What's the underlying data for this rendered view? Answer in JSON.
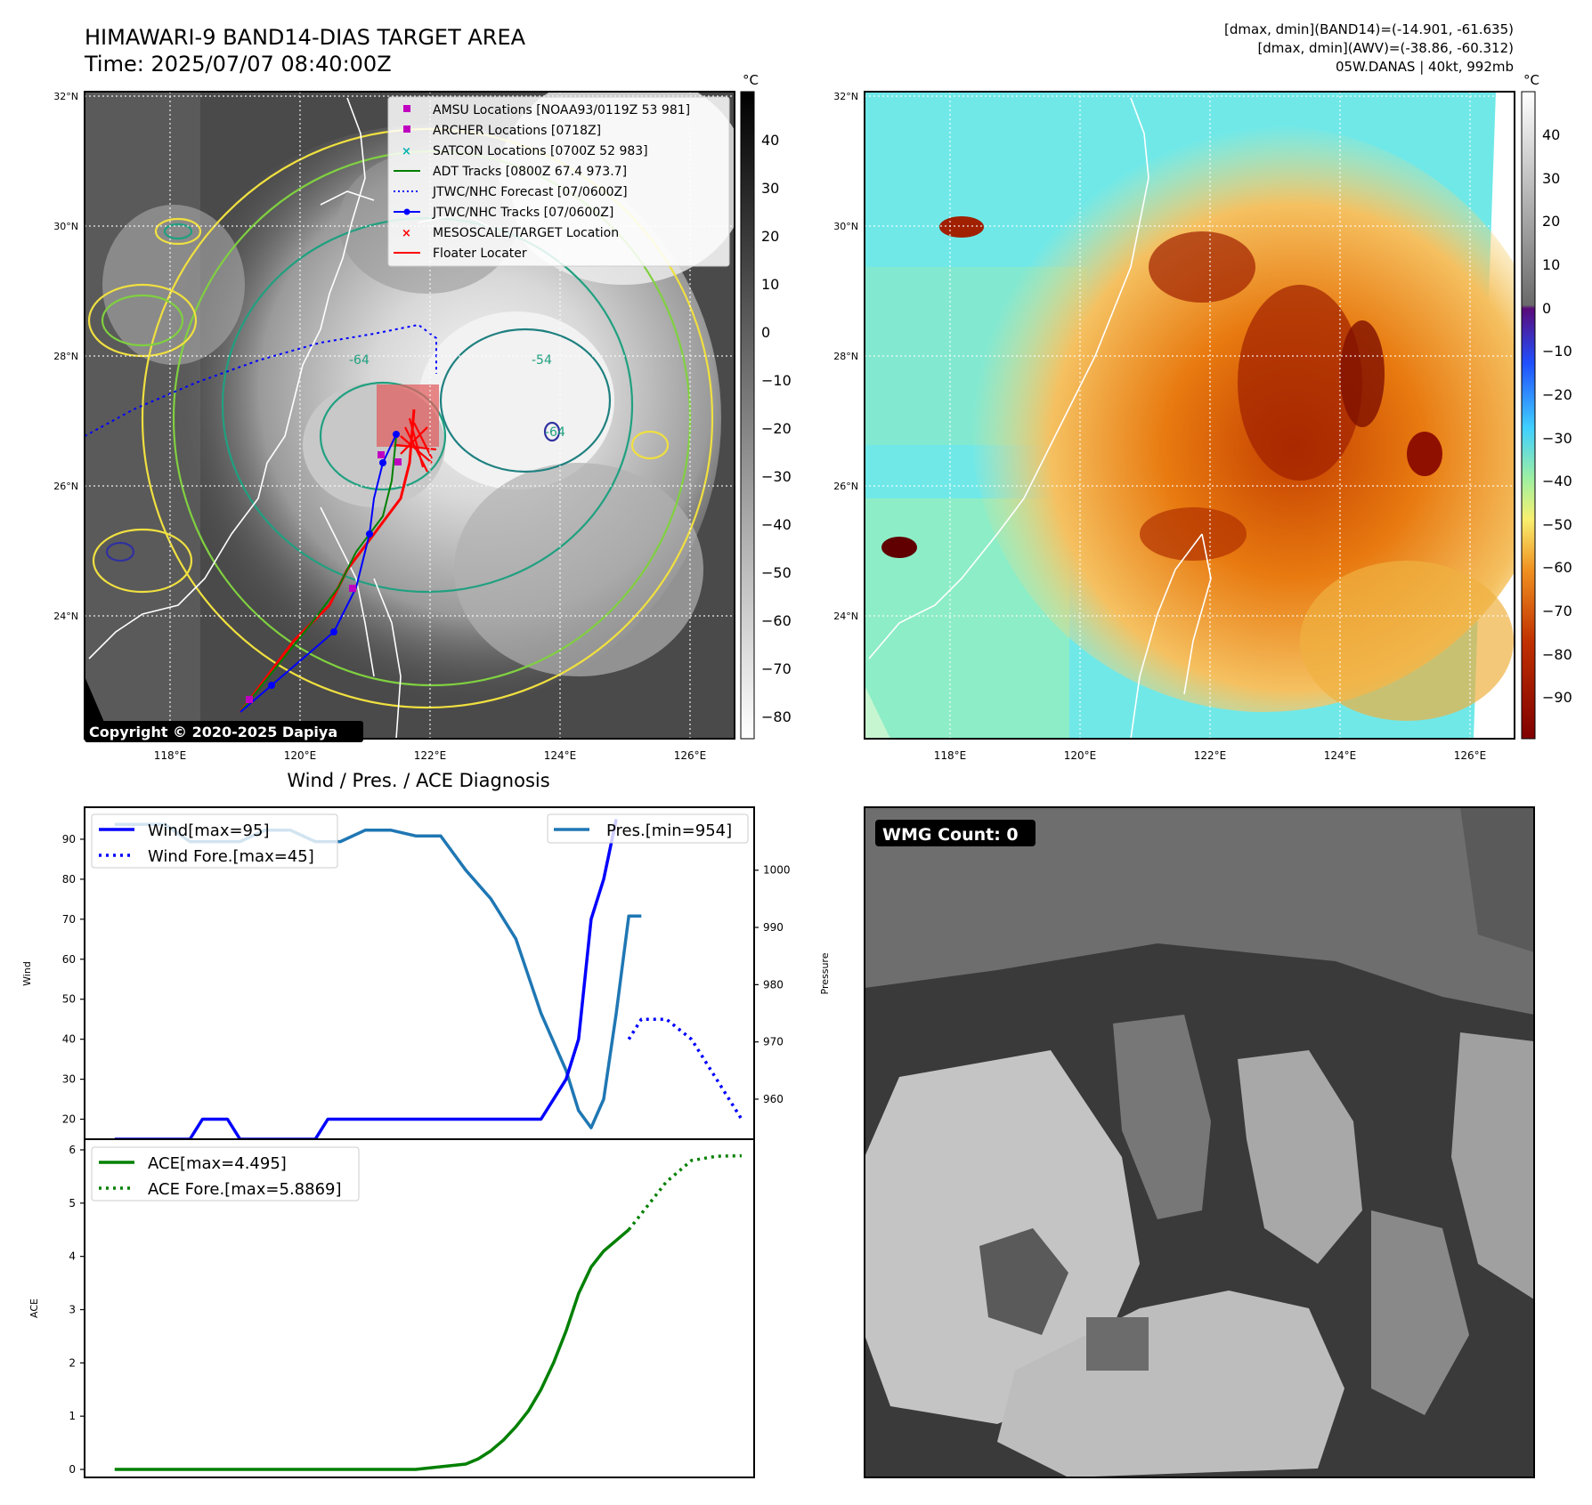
{
  "header": {
    "title": "HIMAWARI-9 BAND14-DIAS TARGET AREA",
    "time": "Time: 2025/07/07 08:40:00Z",
    "info": [
      "[dmax, dmin](BAND14)=(-14.901, -61.635)",
      "[dmax, dmin](AWV)=(-38.86, -60.312)",
      "05W.DANAS | 40kt, 992mb"
    ]
  },
  "map": {
    "lon_ticks": [
      "118°E",
      "120°E",
      "122°E",
      "124°E",
      "126°E"
    ],
    "lat_ticks": [
      "32°N",
      "30°N",
      "28°N",
      "26°N",
      "24°N"
    ],
    "copyright": "Copyright © 2020-2025 Dapiya",
    "contour_labels": [
      "-64",
      "-54",
      "-64"
    ],
    "colorbar_gray": {
      "unit": "°C",
      "ticks": [
        "40",
        "30",
        "20",
        "10",
        "0",
        "−10",
        "−20",
        "−30",
        "−40",
        "−50",
        "−60",
        "−70",
        "−80"
      ]
    },
    "colorbar_color": {
      "unit": "°C",
      "ticks": [
        "40",
        "30",
        "20",
        "10",
        "0",
        "−10",
        "−20",
        "−30",
        "−40",
        "−50",
        "−60",
        "−70",
        "−80",
        "−90"
      ]
    },
    "legend": [
      {
        "label": "AMSU Locations [NOAA93/0119Z 53 981]",
        "color": "#c000c0",
        "marker": "square"
      },
      {
        "label": "ARCHER Locations [0718Z]",
        "color": "#c000c0",
        "marker": "square"
      },
      {
        "label": "SATCON Locations [0700Z 52 983]",
        "color": "#00b0b0",
        "marker": "x"
      },
      {
        "label": "ADT Tracks [0800Z 67.4 973.7]",
        "color": "#008000",
        "marker": "line"
      },
      {
        "label": "JTWC/NHC Forecast [07/0600Z]",
        "color": "#0000ff",
        "marker": "dotted"
      },
      {
        "label": "JTWC/NHC Tracks [07/0600Z]",
        "color": "#0000ff",
        "marker": "line-dot"
      },
      {
        "label": "MESOSCALE/TARGET Location",
        "color": "#ff0000",
        "marker": "x"
      },
      {
        "label": "Floater Locater",
        "color": "#ff0000",
        "marker": "line"
      }
    ]
  },
  "wmg": {
    "label": "WMG Count: 0"
  },
  "chart_data": [
    {
      "type": "line",
      "title": "Wind / Pres. / ACE Diagnosis",
      "ylabel": "Wind",
      "y2label": "Pressure",
      "ylim": [
        15,
        98
      ],
      "y2lim": [
        953,
        1011
      ],
      "yticks": [
        20,
        30,
        40,
        50,
        60,
        70,
        80,
        90
      ],
      "y2ticks": [
        960,
        970,
        980,
        990,
        1000
      ],
      "xlim": [
        -1.2,
        25.5
      ],
      "series": [
        {
          "name": "Wind[max=95]",
          "color": "#0000ff",
          "style": "solid",
          "x": [
            0,
            1,
            2,
            3,
            3.5,
            4.5,
            5,
            6,
            7,
            8,
            8.5,
            9.5,
            10.5,
            11,
            12,
            13,
            14,
            15,
            16,
            16.5,
            17,
            18,
            18.5,
            19,
            19.5,
            20
          ],
          "values": [
            15,
            15,
            15,
            15,
            20,
            20,
            15,
            15,
            15,
            15,
            20,
            20,
            20,
            20,
            20,
            20,
            20,
            20,
            20,
            20,
            20,
            30,
            40,
            70,
            80,
            95
          ]
        },
        {
          "name": "Wind Fore.[max=45]",
          "color": "#0000ff",
          "style": "dotted",
          "x": [
            20.5,
            21,
            22,
            23,
            24,
            25
          ],
          "values": [
            40,
            45,
            45,
            40,
            30,
            20
          ]
        },
        {
          "name": "Pres.[min=954]",
          "color": "#1f77b4",
          "style": "solid",
          "x": [
            0,
            1,
            2,
            3,
            4,
            5,
            6,
            7,
            8,
            9,
            10,
            11,
            12,
            13,
            14,
            15,
            16,
            17,
            18,
            18.5,
            19,
            19.5,
            20,
            20.5,
            21
          ],
          "values": [
            1008,
            1008,
            1008,
            1005,
            1005,
            1005,
            1007,
            1007,
            1005,
            1005,
            1007,
            1007,
            1006,
            1006,
            1000,
            995,
            988,
            975,
            965,
            958,
            955,
            960,
            975,
            992,
            992
          ]
        }
      ]
    },
    {
      "type": "line",
      "ylabel": "ACE",
      "ylim": [
        -0.15,
        6.2
      ],
      "yticks": [
        0,
        1,
        2,
        3,
        4,
        5,
        6
      ],
      "xlim": [
        -1.2,
        25.5
      ],
      "series": [
        {
          "name": "ACE[max=4.495]",
          "color": "#008000",
          "style": "solid",
          "x": [
            0,
            2,
            4,
            6,
            8,
            10,
            12,
            13,
            14,
            14.5,
            15,
            15.5,
            16,
            16.5,
            17,
            17.5,
            18,
            18.5,
            19,
            19.5,
            20,
            20.5
          ],
          "values": [
            0,
            0,
            0,
            0,
            0,
            0,
            0,
            0.05,
            0.1,
            0.2,
            0.35,
            0.55,
            0.8,
            1.1,
            1.5,
            2.0,
            2.6,
            3.3,
            3.8,
            4.1,
            4.3,
            4.5
          ]
        },
        {
          "name": "ACE Fore.[max=5.8869]",
          "color": "#008000",
          "style": "dotted",
          "x": [
            20.5,
            21,
            22,
            23,
            24,
            25
          ],
          "values": [
            4.5,
            4.8,
            5.4,
            5.8,
            5.88,
            5.89
          ]
        }
      ]
    }
  ]
}
